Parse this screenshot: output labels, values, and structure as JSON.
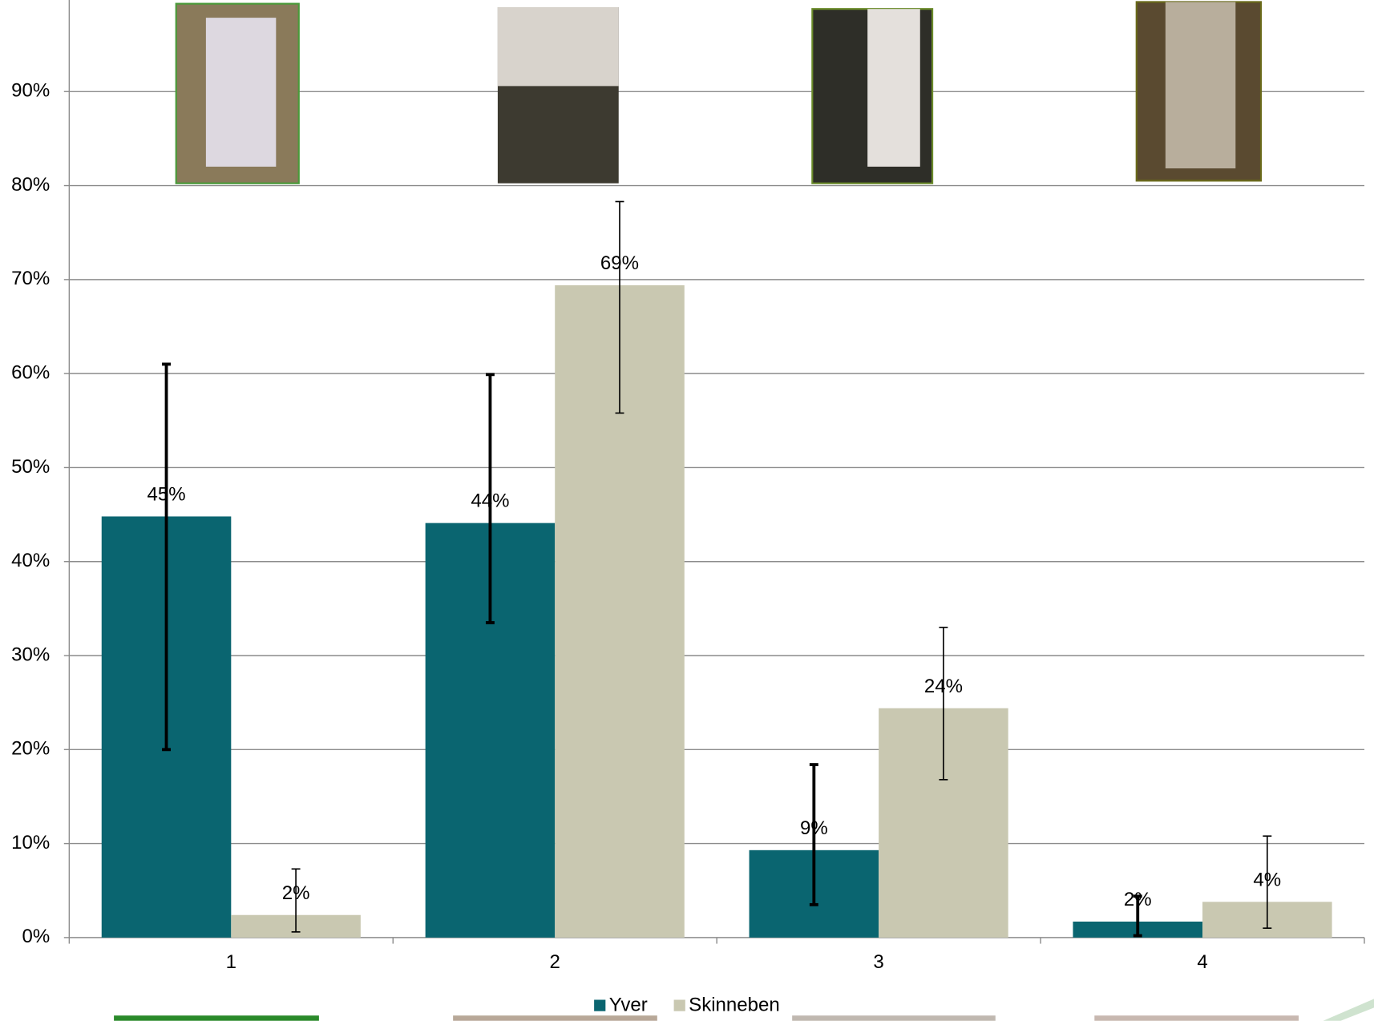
{
  "chart_data": {
    "type": "bar",
    "categories": [
      "1",
      "2",
      "3",
      "4"
    ],
    "series": [
      {
        "name": "Yver",
        "color": "#0a6570",
        "values": [
          44.8,
          44.1,
          9.3,
          1.7
        ],
        "value_labels": [
          "45%",
          "44%",
          "9%",
          "2%"
        ],
        "error_minus": [
          24.8,
          10.6,
          5.8,
          1.5
        ],
        "error_plus": [
          16.2,
          15.8,
          9.1,
          2.7
        ]
      },
      {
        "name": "Skinneben",
        "color": "#c9c8b1",
        "values": [
          2.4,
          69.4,
          24.4,
          3.8
        ],
        "value_labels": [
          "2%",
          "69%",
          "24%",
          "4%"
        ],
        "error_minus": [
          1.8,
          13.6,
          7.6,
          2.8
        ],
        "error_plus": [
          4.9,
          8.9,
          8.6,
          7.0
        ]
      }
    ],
    "ylim": [
      0,
      100
    ],
    "yticks": [
      {
        "value": 0,
        "label": "0%"
      },
      {
        "value": 10,
        "label": "10%"
      },
      {
        "value": 20,
        "label": "20%"
      },
      {
        "value": 30,
        "label": "30%"
      },
      {
        "value": 40,
        "label": "40%"
      },
      {
        "value": 50,
        "label": "50%"
      },
      {
        "value": 60,
        "label": "60%"
      },
      {
        "value": 70,
        "label": "70%"
      },
      {
        "value": 80,
        "label": "80%"
      },
      {
        "value": 90,
        "label": "90%"
      }
    ],
    "grid": true,
    "legend": "bottom"
  }
}
